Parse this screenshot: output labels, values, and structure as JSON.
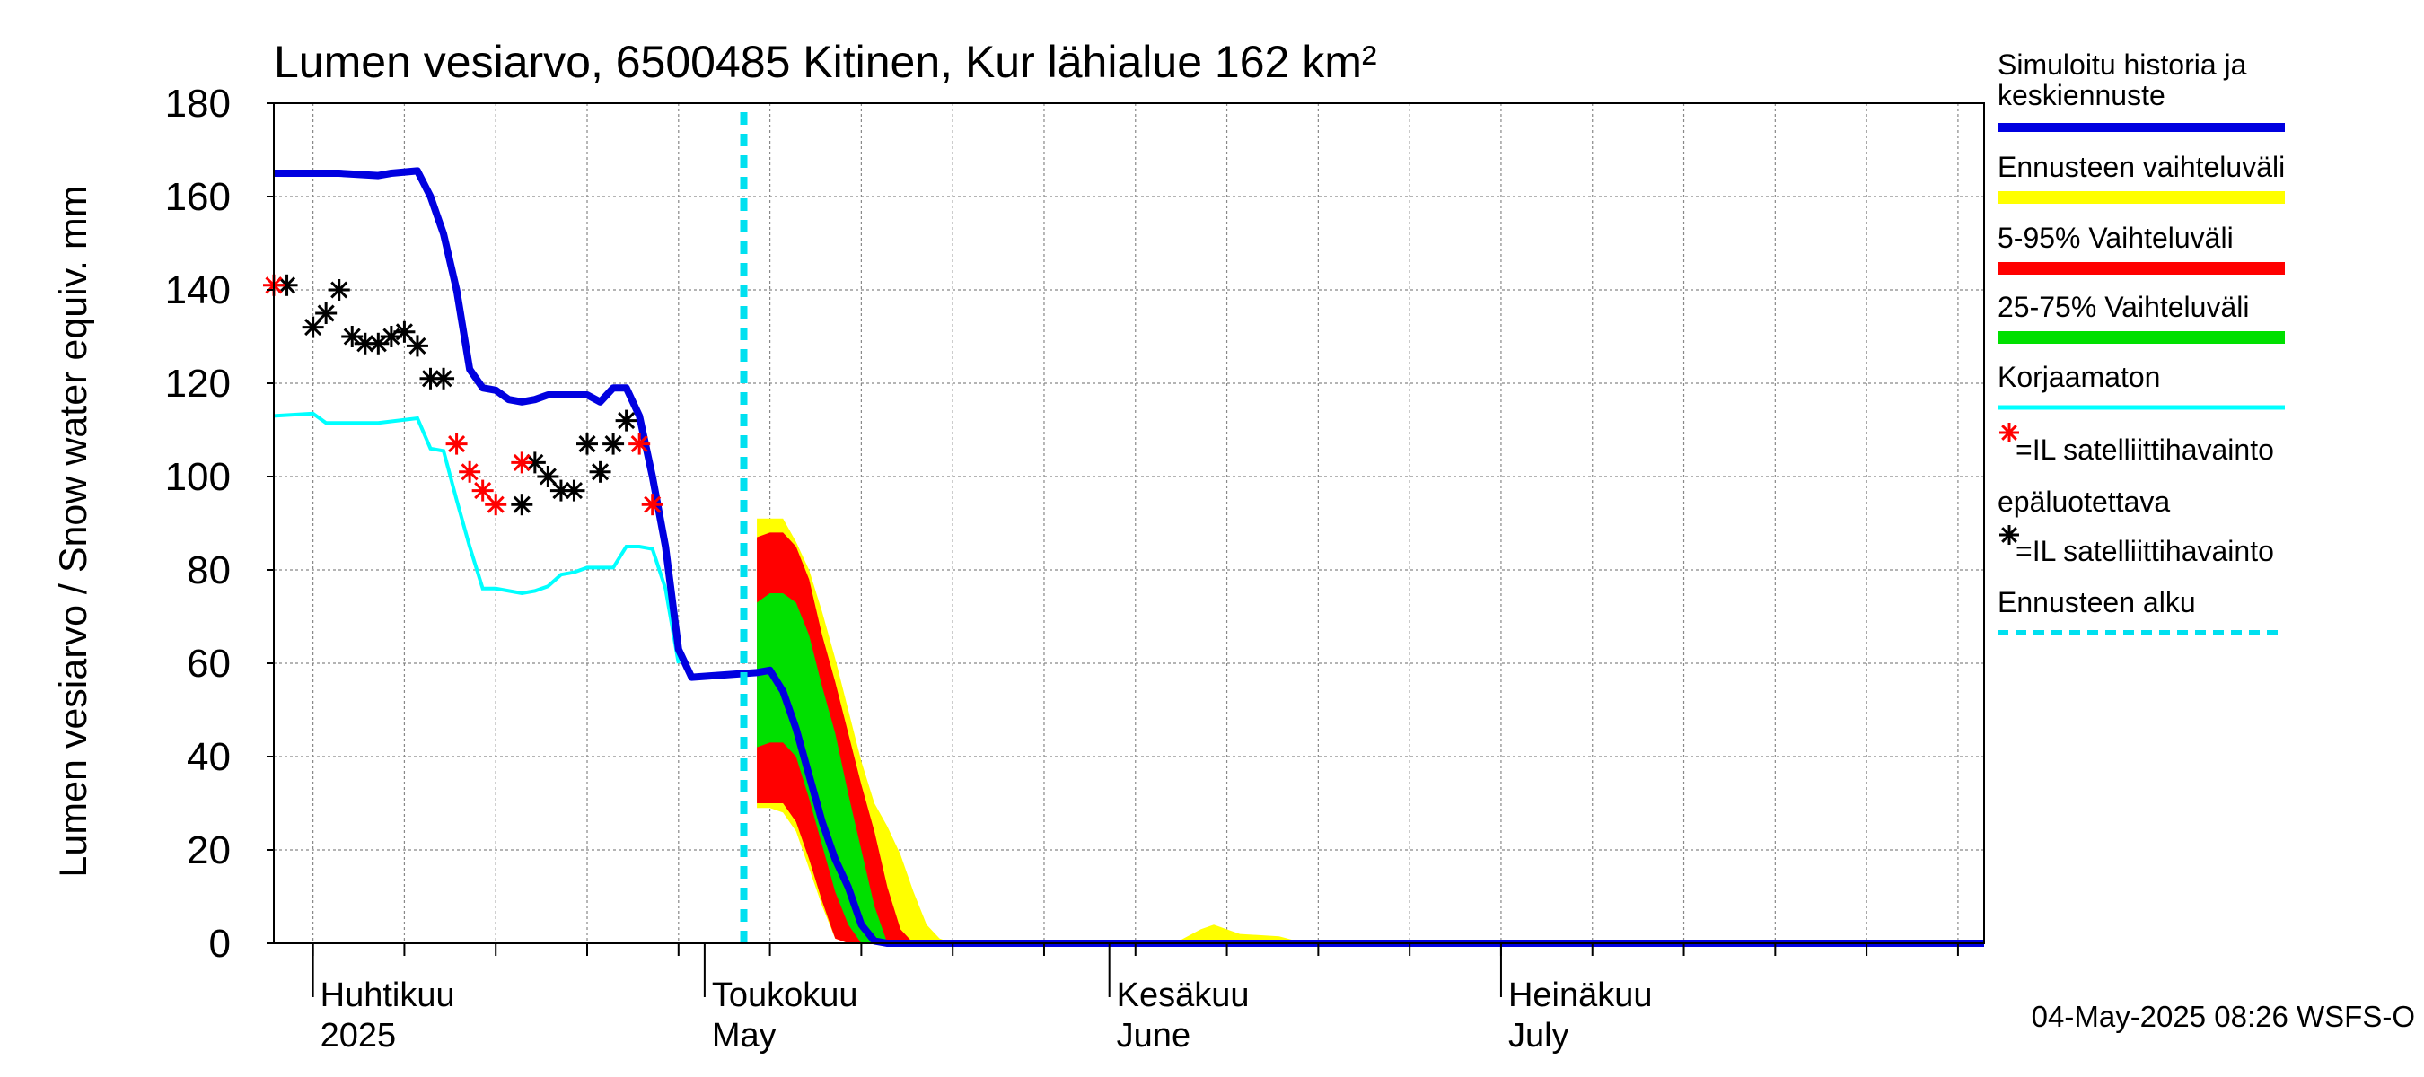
{
  "chart_data": {
    "type": "area",
    "title": "Lumen vesiarvo, 6500485 Kitinen, Kur lähialue 162 km²",
    "ylabel": "Lumen vesiarvo / Snow water equiv.    mm",
    "ylim": [
      0,
      180
    ],
    "yticks": [
      "0",
      "20",
      "40",
      "60",
      "80",
      "100",
      "120",
      "140",
      "160",
      "180"
    ],
    "xlim": [
      "2025-03-29",
      "2025-08-07"
    ],
    "x_month_labels": [
      {
        "date": "2025-04-01",
        "line1": "Huhtikuu",
        "line2": "2025"
      },
      {
        "date": "2025-05-01",
        "line1": "Toukokuu",
        "line2": "May"
      },
      {
        "date": "2025-06-01",
        "line1": "Kesäkuu",
        "line2": "June"
      },
      {
        "date": "2025-07-01",
        "line1": "Heinäkuu",
        "line2": "July"
      }
    ],
    "grid": true,
    "legend_placement": "right",
    "forecast_start": "2025-05-04",
    "colors": {
      "simulated": "#0000e0",
      "forecast_range": "#ffff00",
      "p5_95": "#ff0000",
      "p25_75": "#00e000",
      "uncorrected": "#00ffff",
      "unreliable_obs": "#ff0000",
      "obs": "#000000",
      "forecast_start_line": "#00e0f0"
    },
    "legend": [
      {
        "key": "simulated",
        "label": "Simuloitu historia ja keskiennuste",
        "lines": [
          "Simuloitu historia ja",
          "keskiennuste"
        ]
      },
      {
        "key": "forecast_range",
        "label": "Ennusteen vaihteluväli"
      },
      {
        "key": "p5_95",
        "label": "5-95% Vaihteluväli"
      },
      {
        "key": "p25_75",
        "label": "25-75% Vaihteluväli"
      },
      {
        "key": "uncorrected",
        "label": "Korjaamaton"
      },
      {
        "key": "unreliable_obs",
        "label": "=IL satelliittihavainto epäluotettava",
        "lines": [
          "=IL satelliittihavainto",
          "epäluotettava"
        ]
      },
      {
        "key": "obs",
        "label": "=IL satelliittihavainto"
      },
      {
        "key": "forecast_start_line",
        "label": "Ennusteen alku"
      }
    ],
    "series": {
      "simulated": [
        [
          "2025-03-29",
          165
        ],
        [
          "2025-04-03",
          165
        ],
        [
          "2025-04-06",
          164.5
        ],
        [
          "2025-04-07",
          165
        ],
        [
          "2025-04-09",
          165.5
        ],
        [
          "2025-04-10",
          160
        ],
        [
          "2025-04-11",
          152
        ],
        [
          "2025-04-12",
          140
        ],
        [
          "2025-04-13",
          123
        ],
        [
          "2025-04-14",
          119
        ],
        [
          "2025-04-15",
          118.5
        ],
        [
          "2025-04-16",
          116.5
        ],
        [
          "2025-04-17",
          116
        ],
        [
          "2025-04-18",
          116.5
        ],
        [
          "2025-04-19",
          117.5
        ],
        [
          "2025-04-22",
          117.5
        ],
        [
          "2025-04-23",
          116
        ],
        [
          "2025-04-24",
          119
        ],
        [
          "2025-04-25",
          119
        ],
        [
          "2025-04-26",
          113
        ],
        [
          "2025-04-27",
          100
        ],
        [
          "2025-04-28",
          85
        ],
        [
          "2025-04-29",
          63
        ],
        [
          "2025-04-30",
          57
        ],
        [
          "2025-05-05",
          58
        ],
        [
          "2025-05-06",
          58.5
        ],
        [
          "2025-05-07",
          54
        ],
        [
          "2025-05-08",
          46
        ],
        [
          "2025-05-09",
          36
        ],
        [
          "2025-05-10",
          26
        ],
        [
          "2025-05-11",
          18
        ],
        [
          "2025-05-12",
          12
        ],
        [
          "2025-05-13",
          4
        ],
        [
          "2025-05-14",
          0.5
        ],
        [
          "2025-05-15",
          0
        ],
        [
          "2025-08-07",
          0
        ]
      ],
      "uncorrected": [
        [
          "2025-03-29",
          113
        ],
        [
          "2025-04-01",
          113.5
        ],
        [
          "2025-04-02",
          111.5
        ],
        [
          "2025-04-06",
          111.5
        ],
        [
          "2025-04-09",
          112.5
        ],
        [
          "2025-04-10",
          106
        ],
        [
          "2025-04-11",
          105.5
        ],
        [
          "2025-04-12",
          95
        ],
        [
          "2025-04-13",
          85
        ],
        [
          "2025-04-14",
          76
        ],
        [
          "2025-04-15",
          76
        ],
        [
          "2025-04-16",
          75.5
        ],
        [
          "2025-04-17",
          75
        ],
        [
          "2025-04-18",
          75.5
        ],
        [
          "2025-04-19",
          76.5
        ],
        [
          "2025-04-20",
          79
        ],
        [
          "2025-04-21",
          79.5
        ],
        [
          "2025-04-22",
          80.5
        ],
        [
          "2025-04-23",
          80.5
        ],
        [
          "2025-04-24",
          80.5
        ],
        [
          "2025-04-25",
          85
        ],
        [
          "2025-04-26",
          85
        ],
        [
          "2025-04-27",
          84.5
        ],
        [
          "2025-04-28",
          76
        ],
        [
          "2025-04-29",
          60
        ]
      ],
      "forecast_range": {
        "x": [
          "2025-05-05",
          "2025-05-06",
          "2025-05-07",
          "2025-05-08",
          "2025-05-09",
          "2025-05-10",
          "2025-05-11",
          "2025-05-12",
          "2025-05-13",
          "2025-05-14",
          "2025-05-15",
          "2025-05-16",
          "2025-05-17",
          "2025-05-18",
          "2025-05-19",
          "2025-05-20"
        ],
        "upper": [
          91,
          91,
          91,
          86,
          80,
          71,
          61,
          50,
          39,
          30,
          25,
          19,
          11,
          4,
          1,
          0
        ],
        "lower": [
          29,
          29,
          28,
          24,
          16,
          8,
          1,
          0,
          0,
          0,
          0,
          0,
          0,
          0,
          0,
          0
        ]
      },
      "forecast_range_bump": [
        [
          "2025-06-06",
          0
        ],
        [
          "2025-06-08",
          3
        ],
        [
          "2025-06-09",
          4
        ],
        [
          "2025-06-11",
          2
        ],
        [
          "2025-06-14",
          1.5
        ],
        [
          "2025-06-16",
          0
        ]
      ],
      "p5_95": {
        "x": [
          "2025-05-05",
          "2025-05-06",
          "2025-05-07",
          "2025-05-08",
          "2025-05-09",
          "2025-05-10",
          "2025-05-11",
          "2025-05-12",
          "2025-05-13",
          "2025-05-14",
          "2025-05-15",
          "2025-05-16",
          "2025-05-17",
          "2025-05-18"
        ],
        "upper": [
          87,
          88,
          88,
          85,
          78,
          66,
          56,
          45,
          34,
          24,
          12,
          3,
          0,
          0
        ],
        "lower": [
          30,
          30,
          30,
          26,
          18,
          9,
          1,
          0,
          0,
          0,
          0,
          0,
          0,
          0
        ]
      },
      "p25_75": {
        "x": [
          "2025-05-05",
          "2025-05-06",
          "2025-05-07",
          "2025-05-08",
          "2025-05-09",
          "2025-05-10",
          "2025-05-11",
          "2025-05-12",
          "2025-05-13",
          "2025-05-14",
          "2025-05-15"
        ],
        "upper": [
          73,
          75,
          75,
          73,
          66,
          55,
          45,
          32,
          20,
          8,
          0
        ],
        "lower": [
          42,
          43,
          43,
          40,
          31,
          21,
          11,
          4,
          0,
          0,
          0
        ]
      },
      "obs": [
        [
          "2025-03-30",
          141
        ],
        [
          "2025-04-01",
          132
        ],
        [
          "2025-04-02",
          135
        ],
        [
          "2025-04-03",
          140
        ],
        [
          "2025-04-04",
          130
        ],
        [
          "2025-04-05",
          128.5
        ],
        [
          "2025-04-06",
          128.5
        ],
        [
          "2025-04-07",
          130
        ],
        [
          "2025-04-08",
          131
        ],
        [
          "2025-04-09",
          128
        ],
        [
          "2025-04-10",
          121
        ],
        [
          "2025-04-11",
          121
        ],
        [
          "2025-04-17",
          94
        ],
        [
          "2025-04-18",
          103
        ],
        [
          "2025-04-19",
          100
        ],
        [
          "2025-04-20",
          97
        ],
        [
          "2025-04-21",
          97
        ],
        [
          "2025-04-22",
          107
        ],
        [
          "2025-04-23",
          101
        ],
        [
          "2025-04-24",
          107
        ],
        [
          "2025-04-25",
          112
        ]
      ],
      "unreliable_obs": [
        [
          "2025-03-29",
          141
        ],
        [
          "2025-04-12",
          107
        ],
        [
          "2025-04-13",
          101
        ],
        [
          "2025-04-14",
          97
        ],
        [
          "2025-04-15",
          94
        ],
        [
          "2025-04-17",
          103
        ],
        [
          "2025-04-26",
          107
        ],
        [
          "2025-04-27",
          94
        ]
      ]
    }
  },
  "footer": "04-May-2025 08:26 WSFS-O"
}
